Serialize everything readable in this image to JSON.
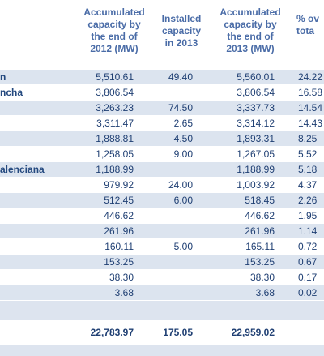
{
  "headers": {
    "col1": "Accumulated\ncapacity by\nthe end of\n2012 (MW)",
    "col2": "Installed\ncapacity\nin 2013",
    "col3": "Accumulated\ncapacity by\nthe end of\n2013 (MW)",
    "col4": "% ov\ntota"
  },
  "rows": [
    {
      "name": "n",
      "c1": "5,510.61",
      "c2": "49.40",
      "c3": "5,560.01",
      "c4": "24.22"
    },
    {
      "name": "ncha",
      "c1": "3,806.54",
      "c2": "",
      "c3": "3,806.54",
      "c4": "16.58"
    },
    {
      "name": "",
      "c1": "3,263.23",
      "c2": "74.50",
      "c3": "3,337.73",
      "c4": "14.54"
    },
    {
      "name": "",
      "c1": "3,311.47",
      "c2": "2.65",
      "c3": "3,314.12",
      "c4": "14.43"
    },
    {
      "name": "",
      "c1": "1,888.81",
      "c2": "4.50",
      "c3": "1,893.31",
      "c4": "8.25"
    },
    {
      "name": "",
      "c1": "1,258.05",
      "c2": "9.00",
      "c3": "1,267.05",
      "c4": "5.52"
    },
    {
      "name": "alenciana",
      "c1": "1,188.99",
      "c2": "",
      "c3": "1,188.99",
      "c4": "5.18"
    },
    {
      "name": "",
      "c1": "979.92",
      "c2": "24.00",
      "c3": "1,003.92",
      "c4": "4.37"
    },
    {
      "name": "",
      "c1": "512.45",
      "c2": "6.00",
      "c3": "518.45",
      "c4": "2.26"
    },
    {
      "name": "",
      "c1": "446.62",
      "c2": "",
      "c3": "446.62",
      "c4": "1.95"
    },
    {
      "name": "",
      "c1": "261.96",
      "c2": "",
      "c3": "261.96",
      "c4": "1.14"
    },
    {
      "name": "",
      "c1": "160.11",
      "c2": "5.00",
      "c3": "165.11",
      "c4": "0.72"
    },
    {
      "name": "",
      "c1": "153.25",
      "c2": "",
      "c3": "153.25",
      "c4": "0.67"
    },
    {
      "name": "",
      "c1": "38.30",
      "c2": "",
      "c3": "38.30",
      "c4": "0.17"
    },
    {
      "name": "",
      "c1": "3.68",
      "c2": "",
      "c3": "3.68",
      "c4": "0.02"
    }
  ],
  "total": {
    "c1": "22,783.97",
    "c2": "175.05",
    "c3": "22,959.02"
  },
  "colors": {
    "text": "#1f3f73",
    "header": "#4a6ca7",
    "band": "#dce4ef"
  }
}
